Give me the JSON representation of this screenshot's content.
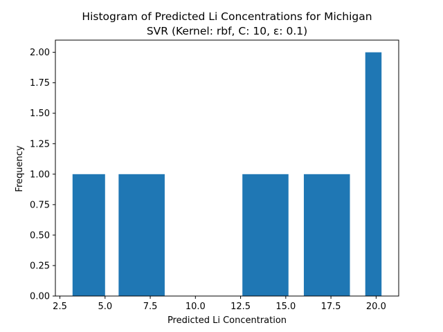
{
  "chart_data": {
    "type": "bar",
    "title_lines": [
      "Histogram of Predicted Li Concentrations for Michigan",
      "SVR (Kernel: rbf, C: 10, ε: 0.1)"
    ],
    "xlabel": "Predicted Li Concentration",
    "ylabel": "Frequency",
    "xlim": [
      2.25,
      21.25
    ],
    "ylim": [
      0,
      2.1
    ],
    "xticks": [
      2.5,
      5.0,
      7.5,
      10.0,
      12.5,
      15.0,
      17.5,
      20.0
    ],
    "xtick_labels": [
      "2.5",
      "5.0",
      "7.5",
      "10.0",
      "12.5",
      "15.0",
      "17.5",
      "20.0"
    ],
    "yticks": [
      0,
      0.25,
      0.5,
      0.75,
      1.0,
      1.25,
      1.5,
      1.75,
      2.0
    ],
    "ytick_labels": [
      "0.00",
      "0.25",
      "0.50",
      "0.75",
      "1.00",
      "1.25",
      "1.50",
      "1.75",
      "2.00"
    ],
    "bars": [
      {
        "x0": 3.2,
        "x1": 5.0,
        "value": 1
      },
      {
        "x0": 5.75,
        "x1": 8.3,
        "value": 1
      },
      {
        "x0": 12.6,
        "x1": 15.15,
        "value": 1
      },
      {
        "x0": 16.0,
        "x1": 18.55,
        "value": 1
      },
      {
        "x0": 19.4,
        "x1": 20.3,
        "value": 2
      }
    ],
    "bar_color": "#1f77b4",
    "grid": false,
    "legend": false
  }
}
